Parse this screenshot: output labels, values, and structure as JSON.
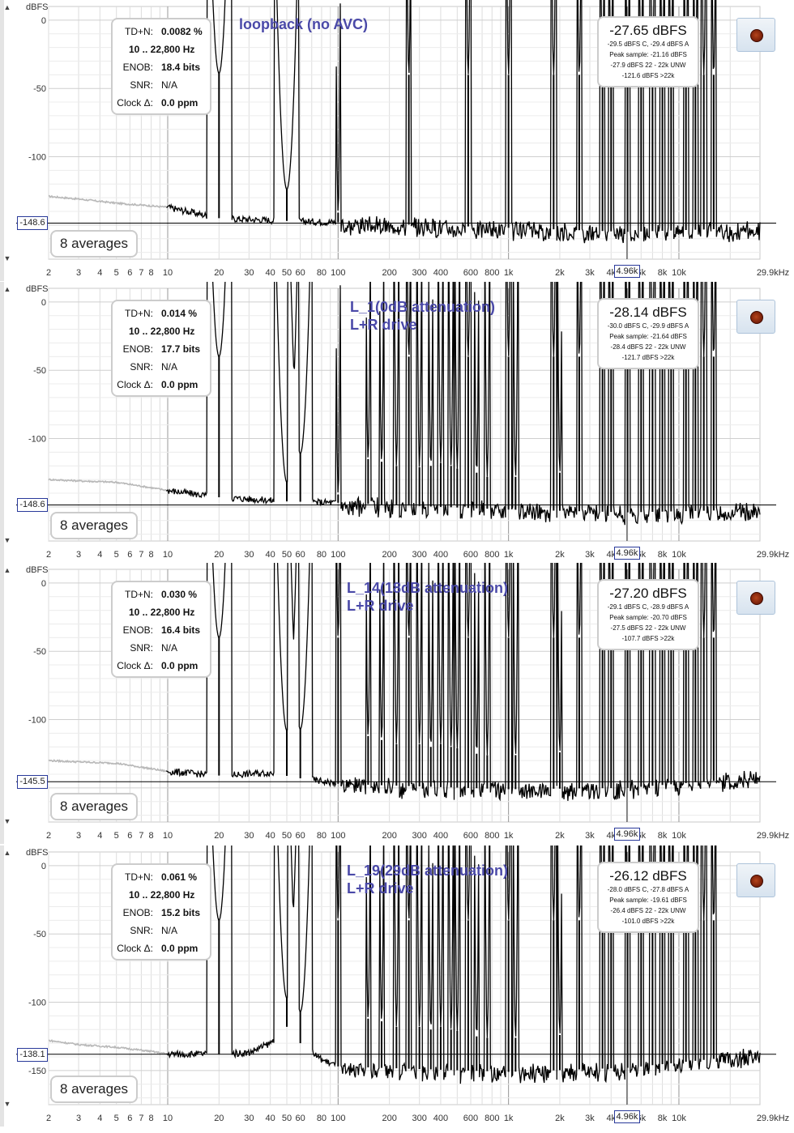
{
  "common": {
    "y_axis_unit": "dBFS",
    "freq_unit_label": "29.9kHz",
    "averages_label": "8 averages",
    "freq_cursor_label": "4.96k",
    "info_keys": {
      "tdn": "TD+N:",
      "enob": "ENOB:",
      "snr": "SNR:",
      "clock": "Clock Δ:"
    }
  },
  "chart_data": [
    {
      "type": "line",
      "title": "loopback (no AVC)",
      "xlabel": "",
      "ylabel": "dBFS",
      "x_scale": "log",
      "xlim": [
        2,
        29900
      ],
      "ylim": [
        -175,
        10
      ],
      "x_ticks": [
        2,
        3,
        4,
        5,
        6,
        7,
        8,
        10,
        20,
        30,
        40,
        50,
        60,
        80,
        100,
        200,
        300,
        400,
        600,
        800,
        1000,
        2000,
        3000,
        4000,
        6000,
        8000,
        10000
      ],
      "x_tick_labels": [
        "2",
        "3",
        "4",
        "5",
        "6",
        "7",
        "8",
        "10",
        "20",
        "30",
        "40",
        "50",
        "60",
        "80",
        "100",
        "200",
        "300",
        "400",
        "600",
        "800",
        "1k",
        "2k",
        "3k",
        "4k",
        "6k",
        "8k",
        "10k"
      ],
      "y_ticks": [
        0,
        -50,
        -100
      ],
      "y_tick_labels": [
        "0",
        "-50",
        "-100"
      ],
      "cursor_level": -148.6,
      "cursor_label": "-148.6",
      "info": {
        "tdn": "0.0082 %",
        "range": "10 .. 22,800 Hz",
        "enob": "18.4 bits",
        "snr": "N/A",
        "clock": "0.0 ppm"
      },
      "level": {
        "main": "-27.65 dBFS",
        "sub": [
          "-29.5 dBFS C, -29.4 dBFS A",
          "Peak sample: -21.16 dBFS",
          "-27.9 dBFS 22 - 22k UNW",
          "-121.6 dBFS >22k"
        ]
      },
      "annotation": [
        "loopback (no AVC)"
      ],
      "noise_floor": {
        "points": [
          [
            2,
            -129
          ],
          [
            3,
            -131
          ],
          [
            5,
            -134
          ],
          [
            8,
            -136
          ],
          [
            10,
            -137
          ],
          [
            20,
            -145
          ],
          [
            50,
            -147
          ],
          [
            100,
            -148
          ],
          [
            1000,
            -152
          ],
          [
            5000,
            -155
          ],
          [
            29900,
            -152
          ]
        ]
      },
      "peaks": [
        [
          20,
          -39
        ],
        [
          50,
          -124
        ],
        [
          100,
          -141
        ],
        [
          260,
          -40
        ],
        [
          580,
          -40
        ],
        [
          1000,
          -40
        ],
        [
          1840,
          -40
        ],
        [
          2600,
          -40
        ],
        [
          3560,
          -40
        ],
        [
          4000,
          -40
        ],
        [
          5000,
          -40
        ],
        [
          6000,
          -40
        ],
        [
          7000,
          -40
        ],
        [
          8000,
          -40
        ],
        [
          9000,
          -40
        ],
        [
          11000,
          -40
        ],
        [
          12500,
          -40
        ],
        [
          14000,
          -40
        ],
        [
          16000,
          -40
        ]
      ]
    },
    {
      "type": "line",
      "title": "L_1(0dB attenuation) L+R drive",
      "xlabel": "",
      "ylabel": "dBFS",
      "x_scale": "log",
      "xlim": [
        2,
        29900
      ],
      "ylim": [
        -175,
        10
      ],
      "x_ticks": [
        2,
        3,
        4,
        5,
        6,
        7,
        8,
        10,
        20,
        30,
        40,
        50,
        60,
        80,
        100,
        200,
        300,
        400,
        600,
        800,
        1000,
        2000,
        3000,
        4000,
        6000,
        8000,
        10000
      ],
      "x_tick_labels": [
        "2",
        "3",
        "4",
        "5",
        "6",
        "7",
        "8",
        "10",
        "20",
        "30",
        "40",
        "50",
        "60",
        "80",
        "100",
        "200",
        "300",
        "400",
        "600",
        "800",
        "1k",
        "2k",
        "3k",
        "4k",
        "6k",
        "8k",
        "10k"
      ],
      "y_ticks": [
        0,
        -50,
        -100
      ],
      "y_tick_labels": [
        "0",
        "-50",
        "-100"
      ],
      "cursor_level": -148.6,
      "cursor_label": "-148.6",
      "info": {
        "tdn": "0.014 %",
        "range": "10 .. 22,800 Hz",
        "enob": "17.7 bits",
        "snr": "N/A",
        "clock": "0.0 ppm"
      },
      "level": {
        "main": "-28.14 dBFS",
        "sub": [
          "-30.0 dBFS C, -29.9 dBFS A",
          "Peak sample: -21.64 dBFS",
          "-28.4 dBFS 22 - 22k UNW",
          "-121.7 dBFS >22k"
        ]
      },
      "annotation": [
        "L_1(0dB attenuation)",
        "L+R drive"
      ],
      "noise_floor": {
        "points": [
          [
            2,
            -130
          ],
          [
            3,
            -131
          ],
          [
            5,
            -132
          ],
          [
            8,
            -136
          ],
          [
            10,
            -138
          ],
          [
            20,
            -143
          ],
          [
            50,
            -146
          ],
          [
            100,
            -147
          ],
          [
            1000,
            -152
          ],
          [
            5000,
            -154
          ],
          [
            29900,
            -152
          ]
        ]
      },
      "peaks": [
        [
          20,
          -40
        ],
        [
          50,
          -132
        ],
        [
          60,
          -111
        ],
        [
          100,
          -141
        ],
        [
          150,
          -115
        ],
        [
          180,
          -117
        ],
        [
          220,
          -120
        ],
        [
          260,
          -40
        ],
        [
          300,
          -121
        ],
        [
          350,
          -120
        ],
        [
          400,
          -118
        ],
        [
          460,
          -120
        ],
        [
          500,
          -122
        ],
        [
          580,
          -40
        ],
        [
          650,
          -125
        ],
        [
          750,
          -128
        ],
        [
          1000,
          -40
        ],
        [
          1100,
          -128
        ],
        [
          1840,
          -40
        ],
        [
          2000,
          -125
        ],
        [
          2600,
          -40
        ],
        [
          3560,
          -40
        ],
        [
          4000,
          -40
        ],
        [
          5000,
          -40
        ],
        [
          6000,
          -40
        ],
        [
          7000,
          -40
        ],
        [
          8000,
          -40
        ],
        [
          9000,
          -40
        ],
        [
          11000,
          -40
        ],
        [
          12500,
          -40
        ],
        [
          14000,
          -40
        ],
        [
          16000,
          -40
        ]
      ]
    },
    {
      "type": "line",
      "title": "L_14(18dB attenuation) L+R drive",
      "xlabel": "",
      "ylabel": "dBFS",
      "x_scale": "log",
      "xlim": [
        2,
        29900
      ],
      "ylim": [
        -175,
        10
      ],
      "x_ticks": [
        2,
        3,
        4,
        5,
        6,
        7,
        8,
        10,
        20,
        30,
        40,
        50,
        60,
        80,
        100,
        200,
        300,
        400,
        600,
        800,
        1000,
        2000,
        3000,
        4000,
        6000,
        8000,
        10000
      ],
      "x_tick_labels": [
        "2",
        "3",
        "4",
        "5",
        "6",
        "7",
        "8",
        "10",
        "20",
        "30",
        "40",
        "50",
        "60",
        "80",
        "100",
        "200",
        "300",
        "400",
        "600",
        "800",
        "1k",
        "2k",
        "3k",
        "4k",
        "6k",
        "8k",
        "10k"
      ],
      "y_ticks": [
        0,
        -50,
        -100
      ],
      "y_tick_labels": [
        "0",
        "-50",
        "-100"
      ],
      "cursor_level": -145.5,
      "cursor_label": "-145.5",
      "info": {
        "tdn": "0.030 %",
        "range": "10 .. 22,800 Hz",
        "enob": "16.4 bits",
        "snr": "N/A",
        "clock": "0.0 ppm"
      },
      "level": {
        "main": "-27.20 dBFS",
        "sub": [
          "-29.1 dBFS C, -28.9 dBFS A",
          "Peak sample: -20.70 dBFS",
          "-27.5 dBFS 22 - 22k UNW",
          "-107.7 dBFS >22k"
        ]
      },
      "annotation": [
        "L_14(18dB attenuation)",
        "L+R drive"
      ],
      "noise_floor": {
        "points": [
          [
            2,
            -130
          ],
          [
            3,
            -131
          ],
          [
            5,
            -132
          ],
          [
            8,
            -136
          ],
          [
            10,
            -138
          ],
          [
            20,
            -141
          ],
          [
            40,
            -139
          ],
          [
            60,
            -143
          ],
          [
            100,
            -147
          ],
          [
            1000,
            -151
          ],
          [
            5000,
            -150
          ],
          [
            29900,
            -142
          ]
        ]
      },
      "peaks": [
        [
          20,
          -40
        ],
        [
          50,
          -108
        ],
        [
          60,
          -107
        ],
        [
          100,
          -40
        ],
        [
          150,
          -112
        ],
        [
          180,
          -115
        ],
        [
          220,
          -118
        ],
        [
          260,
          -40
        ],
        [
          300,
          -118
        ],
        [
          350,
          -120
        ],
        [
          400,
          -118
        ],
        [
          460,
          -120
        ],
        [
          500,
          -121
        ],
        [
          580,
          -40
        ],
        [
          650,
          -125
        ],
        [
          750,
          -126
        ],
        [
          1000,
          -40
        ],
        [
          1100,
          -126
        ],
        [
          1840,
          -40
        ],
        [
          2000,
          -124
        ],
        [
          2600,
          -40
        ],
        [
          3560,
          -40
        ],
        [
          4000,
          -40
        ],
        [
          5000,
          -40
        ],
        [
          6000,
          -40
        ],
        [
          7000,
          -40
        ],
        [
          8000,
          -40
        ],
        [
          9000,
          -40
        ],
        [
          11000,
          -40
        ],
        [
          12500,
          -40
        ],
        [
          14000,
          -40
        ],
        [
          16000,
          -40
        ]
      ]
    },
    {
      "type": "line",
      "title": "L_19(29dB attenuation) L+R drive",
      "xlabel": "",
      "ylabel": "dBFS",
      "x_scale": "log",
      "xlim": [
        2,
        29900
      ],
      "ylim": [
        -175,
        10
      ],
      "x_ticks": [
        2,
        3,
        4,
        5,
        6,
        7,
        8,
        10,
        20,
        30,
        40,
        50,
        60,
        80,
        100,
        200,
        300,
        400,
        600,
        800,
        1000,
        2000,
        3000,
        4000,
        6000,
        8000,
        10000
      ],
      "x_tick_labels": [
        "2",
        "3",
        "4",
        "5",
        "6",
        "7",
        "8",
        "10",
        "20",
        "30",
        "40",
        "50",
        "60",
        "80",
        "100",
        "200",
        "300",
        "400",
        "600",
        "800",
        "1k",
        "2k",
        "3k",
        "4k",
        "6k",
        "8k",
        "10k"
      ],
      "y_ticks": [
        0,
        -50,
        -100,
        -150
      ],
      "y_tick_labels": [
        "0",
        "-50",
        "-100",
        "-150"
      ],
      "cursor_level": -138.1,
      "cursor_label": "-138.1",
      "info": {
        "tdn": "0.061 %",
        "range": "10 .. 22,800 Hz",
        "enob": "15.2 bits",
        "snr": "N/A",
        "clock": "0.0 ppm"
      },
      "level": {
        "main": "-26.12 dBFS",
        "sub": [
          "-28.0 dBFS C, -27.8 dBFS A",
          "Peak sample: -19.61 dBFS",
          "-26.4 dBFS 22 - 22k UNW",
          "-101.0 dBFS >22k"
        ]
      },
      "annotation": [
        "L_19(29dB attenuation)",
        "L+R drive"
      ],
      "noise_floor": {
        "points": [
          [
            2,
            -128
          ],
          [
            3,
            -131
          ],
          [
            5,
            -133
          ],
          [
            8,
            -136
          ],
          [
            10,
            -138
          ],
          [
            20,
            -138
          ],
          [
            30,
            -137
          ],
          [
            40,
            -130
          ],
          [
            50,
            -118
          ],
          [
            60,
            -130
          ],
          [
            80,
            -142
          ],
          [
            100,
            -147
          ],
          [
            1000,
            -151
          ],
          [
            5000,
            -148
          ],
          [
            29900,
            -138
          ]
        ]
      },
      "peaks": [
        [
          20,
          -40
        ],
        [
          50,
          -97
        ],
        [
          60,
          -107
        ],
        [
          100,
          -40
        ],
        [
          150,
          -112
        ],
        [
          180,
          -114
        ],
        [
          220,
          -118
        ],
        [
          260,
          -40
        ],
        [
          300,
          -118
        ],
        [
          350,
          -120
        ],
        [
          400,
          -118
        ],
        [
          460,
          -120
        ],
        [
          500,
          -121
        ],
        [
          580,
          -40
        ],
        [
          650,
          -125
        ],
        [
          750,
          -126
        ],
        [
          1000,
          -40
        ],
        [
          1100,
          -126
        ],
        [
          1840,
          -40
        ],
        [
          2000,
          -124
        ],
        [
          2600,
          -40
        ],
        [
          3560,
          -40
        ],
        [
          4000,
          -40
        ],
        [
          5000,
          -40
        ],
        [
          6000,
          -40
        ],
        [
          7000,
          -40
        ],
        [
          8000,
          -40
        ],
        [
          9000,
          -40
        ],
        [
          11000,
          -40
        ],
        [
          12500,
          -40
        ],
        [
          14000,
          -40
        ],
        [
          16000,
          -40
        ]
      ]
    }
  ],
  "colors": {
    "trace": "#000000",
    "trace_low": "#b8b8b8",
    "grid_major": "#999999",
    "grid_minor": "#dddddd",
    "cursor": "#000000",
    "annotation": "#4a49a8"
  }
}
